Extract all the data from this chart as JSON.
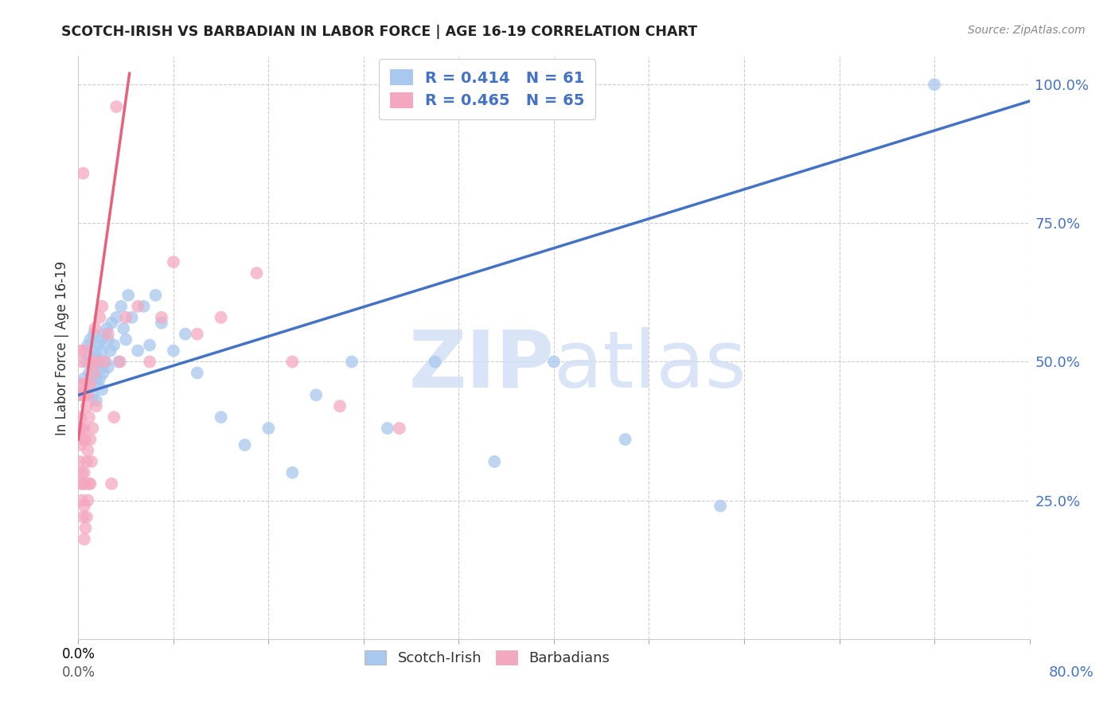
{
  "title": "SCOTCH-IRISH VS BARBADIAN IN LABOR FORCE | AGE 16-19 CORRELATION CHART",
  "source": "Source: ZipAtlas.com",
  "ylabel": "In Labor Force | Age 16-19",
  "xlim": [
    0.0,
    0.8
  ],
  "ylim": [
    0.0,
    1.05
  ],
  "blue_R": 0.414,
  "blue_N": 61,
  "pink_R": 0.465,
  "pink_N": 65,
  "blue_color": "#A8C8EE",
  "pink_color": "#F4A8C0",
  "blue_line_color": "#4472C4",
  "pink_line_color": "#E8607A",
  "right_tick_color": "#4472C4",
  "watermark_color": "#D0DFF5",
  "legend_blue_label": "Scotch-Irish",
  "legend_pink_label": "Barbadians",
  "blue_line_x0": 0.0,
  "blue_line_y0": 0.44,
  "blue_line_x1": 0.8,
  "blue_line_y1": 0.97,
  "pink_line_x0": 0.0,
  "pink_line_y0": 0.36,
  "pink_line_x1": 0.043,
  "pink_line_y1": 1.02,
  "blue_scatter_x": [
    0.005,
    0.007,
    0.008,
    0.009,
    0.01,
    0.01,
    0.01,
    0.012,
    0.012,
    0.013,
    0.013,
    0.014,
    0.015,
    0.015,
    0.015,
    0.016,
    0.016,
    0.017,
    0.018,
    0.018,
    0.019,
    0.02,
    0.02,
    0.02,
    0.021,
    0.022,
    0.023,
    0.024,
    0.025,
    0.025,
    0.027,
    0.028,
    0.03,
    0.032,
    0.034,
    0.036,
    0.038,
    0.04,
    0.042,
    0.045,
    0.05,
    0.055,
    0.06,
    0.065,
    0.07,
    0.08,
    0.09,
    0.1,
    0.12,
    0.14,
    0.16,
    0.18,
    0.2,
    0.23,
    0.26,
    0.3,
    0.35,
    0.4,
    0.46,
    0.54,
    0.72
  ],
  "blue_scatter_y": [
    0.47,
    0.5,
    0.53,
    0.48,
    0.46,
    0.51,
    0.54,
    0.44,
    0.49,
    0.52,
    0.55,
    0.48,
    0.43,
    0.47,
    0.51,
    0.46,
    0.5,
    0.53,
    0.47,
    0.5,
    0.54,
    0.45,
    0.49,
    0.52,
    0.48,
    0.55,
    0.5,
    0.56,
    0.49,
    0.54,
    0.52,
    0.57,
    0.53,
    0.58,
    0.5,
    0.6,
    0.56,
    0.54,
    0.62,
    0.58,
    0.52,
    0.6,
    0.53,
    0.62,
    0.57,
    0.52,
    0.55,
    0.48,
    0.4,
    0.35,
    0.38,
    0.3,
    0.44,
    0.5,
    0.38,
    0.5,
    0.32,
    0.5,
    0.36,
    0.24,
    1.0
  ],
  "pink_scatter_x": [
    0.001,
    0.001,
    0.001,
    0.002,
    0.002,
    0.002,
    0.002,
    0.002,
    0.003,
    0.003,
    0.003,
    0.003,
    0.003,
    0.004,
    0.004,
    0.004,
    0.004,
    0.005,
    0.005,
    0.005,
    0.005,
    0.005,
    0.005,
    0.006,
    0.006,
    0.006,
    0.006,
    0.007,
    0.007,
    0.007,
    0.008,
    0.008,
    0.008,
    0.009,
    0.009,
    0.01,
    0.01,
    0.01,
    0.011,
    0.011,
    0.012,
    0.013,
    0.014,
    0.015,
    0.016,
    0.018,
    0.02,
    0.022,
    0.025,
    0.028,
    0.03,
    0.035,
    0.04,
    0.05,
    0.06,
    0.07,
    0.08,
    0.1,
    0.12,
    0.15,
    0.18,
    0.22,
    0.27,
    0.032,
    0.004
  ],
  "pink_scatter_y": [
    0.32,
    0.38,
    0.44,
    0.28,
    0.35,
    0.4,
    0.46,
    0.52,
    0.25,
    0.3,
    0.38,
    0.44,
    0.5,
    0.22,
    0.28,
    0.36,
    0.44,
    0.18,
    0.24,
    0.3,
    0.38,
    0.46,
    0.52,
    0.2,
    0.28,
    0.36,
    0.44,
    0.22,
    0.32,
    0.42,
    0.25,
    0.34,
    0.44,
    0.28,
    0.4,
    0.28,
    0.36,
    0.46,
    0.32,
    0.5,
    0.38,
    0.48,
    0.56,
    0.42,
    0.5,
    0.58,
    0.6,
    0.5,
    0.55,
    0.28,
    0.4,
    0.5,
    0.58,
    0.6,
    0.5,
    0.58,
    0.68,
    0.55,
    0.58,
    0.66,
    0.5,
    0.42,
    0.38,
    0.96,
    0.84
  ]
}
